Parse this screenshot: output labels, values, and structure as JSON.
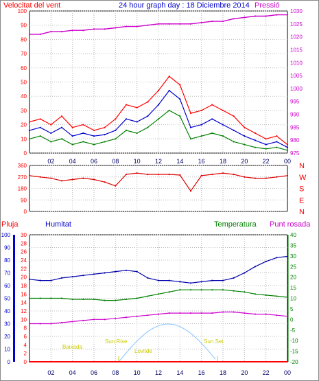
{
  "header": {
    "wind_title": "Velocitat del vent",
    "graph_title": "24 hour graph day : 18 Diciembre 2014",
    "pressure_title": "Pressió"
  },
  "lower_header": {
    "rain": "Pluja",
    "humidity": "Humitat",
    "temperature": "Temperatura",
    "dewpoint": "Punt rosada"
  },
  "sun_labels": {
    "moonrise": "Baixada",
    "sunrise": "Sun Rise",
    "moonset": "Lovitde",
    "sunset": "Sun Set"
  },
  "colors": {
    "wind_gust": "#ff0000",
    "wind_avg": "#0000cc",
    "wind_low": "#008000",
    "pressure": "#cc00cc",
    "direction": "#dd0000",
    "humidity": "#0000aa",
    "temperature": "#008000",
    "dewpoint": "#cc00cc",
    "rain": "#ff0000",
    "sun": "#99ccff",
    "sun_labels": "#cccc00"
  },
  "chart_data": [
    {
      "type": "line",
      "name": "wind",
      "x_ticks": [
        "02",
        "04",
        "06",
        "08",
        "10",
        "12",
        "14",
        "16",
        "18",
        "20",
        "22",
        "00"
      ],
      "y_left_ticks": [
        0,
        10,
        20,
        30,
        40,
        50,
        60,
        70,
        80,
        90,
        100
      ],
      "y_right_ticks": [
        975,
        980,
        985,
        990,
        995,
        1000,
        1005,
        1010,
        1015,
        1020,
        1025,
        1030
      ],
      "ylim_left": [
        0,
        100
      ],
      "ylim_right": [
        975,
        1030
      ],
      "hours": [
        0,
        1,
        2,
        3,
        4,
        5,
        6,
        7,
        8,
        9,
        10,
        11,
        12,
        13,
        14,
        15,
        16,
        17,
        18,
        19,
        20,
        21,
        22,
        23,
        24
      ],
      "series": [
        {
          "values": [
            22,
            24,
            20,
            26,
            18,
            20,
            16,
            18,
            24,
            34,
            32,
            36,
            44,
            54,
            48,
            28,
            30,
            34,
            30,
            26,
            18,
            14,
            10,
            12,
            6
          ]
        },
        {
          "values": [
            16,
            18,
            14,
            18,
            12,
            14,
            12,
            13,
            16,
            24,
            22,
            26,
            34,
            44,
            38,
            18,
            20,
            24,
            20,
            16,
            12,
            9,
            6,
            8,
            4
          ]
        },
        {
          "values": [
            10,
            12,
            8,
            10,
            6,
            8,
            6,
            8,
            10,
            16,
            14,
            18,
            24,
            30,
            26,
            10,
            12,
            14,
            12,
            8,
            6,
            4,
            3,
            4,
            2
          ]
        },
        {
          "axis": "right",
          "values": [
            1021,
            1021,
            1022,
            1022,
            1022.5,
            1022.5,
            1023,
            1023,
            1023.5,
            1024,
            1024,
            1024.5,
            1025,
            1025,
            1025,
            1025,
            1025.5,
            1026,
            1026,
            1027,
            1027.5,
            1028,
            1028,
            1028.5,
            1028.5
          ]
        }
      ]
    },
    {
      "type": "line",
      "name": "direction",
      "y_ticks": [
        0,
        90,
        180,
        270,
        360
      ],
      "ylim": [
        0,
        360
      ],
      "compass_labels": [
        "N",
        "W",
        "S",
        "E",
        "N"
      ],
      "hours": [
        0,
        1,
        2,
        3,
        4,
        5,
        6,
        7,
        8,
        9,
        10,
        11,
        12,
        13,
        14,
        15,
        16,
        17,
        18,
        19,
        20,
        21,
        22,
        23,
        24
      ],
      "series": [
        {
          "values": [
            280,
            270,
            260,
            240,
            250,
            260,
            250,
            230,
            200,
            290,
            300,
            290,
            290,
            290,
            285,
            160,
            280,
            290,
            300,
            290,
            270,
            260,
            260,
            270,
            280
          ]
        }
      ]
    },
    {
      "type": "line",
      "name": "humidity-temperature",
      "y_humidity_ticks": [
        0,
        10,
        20,
        30,
        40,
        50,
        60,
        70,
        80,
        90,
        100
      ],
      "y_rain_ticks": [
        0,
        2,
        4,
        6,
        8,
        10,
        12,
        14,
        16,
        18,
        20,
        22,
        24,
        26,
        28,
        30
      ],
      "y_temperature_ticks": [
        -20,
        -15,
        -10,
        -5,
        0,
        5,
        10,
        15,
        20,
        25,
        30,
        35,
        40
      ],
      "ylim_humidity": [
        0,
        100
      ],
      "ylim_temperature": [
        -20,
        40
      ],
      "hours": [
        0,
        1,
        2,
        3,
        4,
        5,
        6,
        7,
        8,
        9,
        10,
        11,
        12,
        13,
        14,
        15,
        16,
        17,
        18,
        19,
        20,
        21,
        22,
        23,
        24
      ],
      "series": [
        {
          "values": [
            65,
            64,
            64,
            66,
            67,
            68,
            69,
            70,
            71,
            72,
            71,
            66,
            64,
            64,
            63,
            62,
            63,
            64,
            64,
            66,
            70,
            75,
            79,
            82,
            83
          ]
        },
        {
          "values": [
            10,
            10,
            10,
            10,
            9.5,
            9.5,
            9.5,
            9,
            9,
            9.5,
            10,
            11,
            12,
            13,
            14,
            14,
            14,
            14,
            14,
            13.5,
            13,
            12,
            11.5,
            11,
            10.5
          ]
        },
        {
          "values": [
            -2,
            -2,
            -2,
            -1.5,
            -1,
            -0.5,
            0,
            0,
            0.5,
            1,
            1.5,
            2,
            2.5,
            3,
            3,
            3,
            3,
            3,
            3.5,
            3.5,
            3,
            2.5,
            2.5,
            2,
            1.5
          ]
        }
      ],
      "rain": {
        "values": [
          0,
          0,
          0,
          0,
          0,
          0,
          0,
          0,
          0,
          0,
          0,
          0,
          0,
          0,
          0,
          0,
          0,
          0,
          0,
          0,
          0,
          0,
          0,
          0,
          0
        ]
      },
      "sun_peak_hour": 13.2
    }
  ]
}
